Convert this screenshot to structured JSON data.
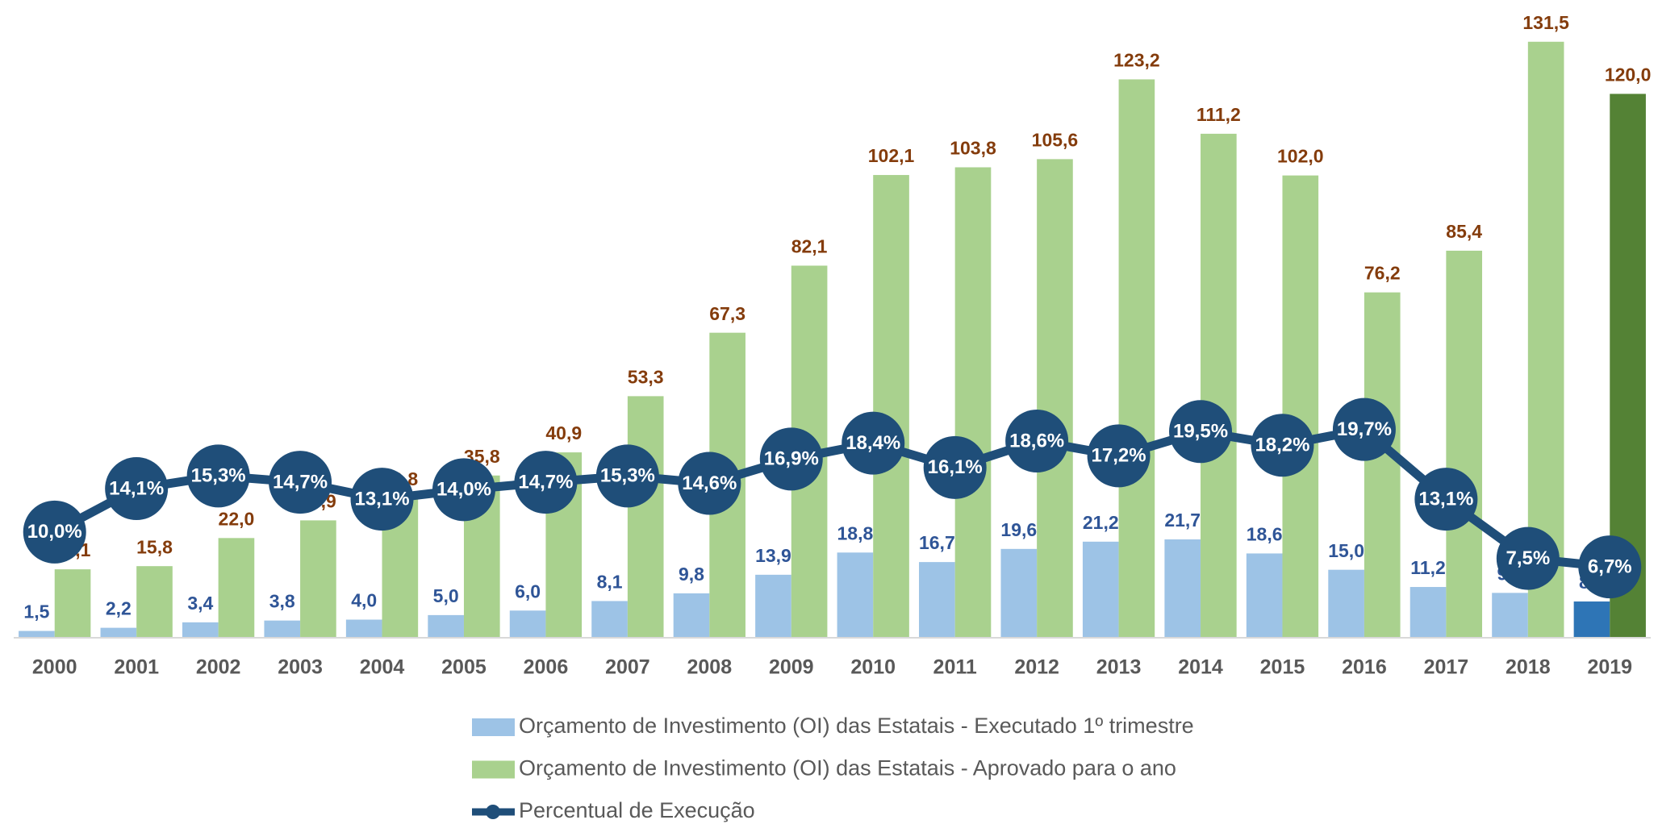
{
  "chart_data": {
    "type": "bar_line",
    "categories": [
      "2000",
      "2001",
      "2002",
      "2003",
      "2004",
      "2005",
      "2006",
      "2007",
      "2008",
      "2009",
      "2010",
      "2011",
      "2012",
      "2013",
      "2014",
      "2015",
      "2016",
      "2017",
      "2018",
      "2019"
    ],
    "series": [
      {
        "name": "Orçamento de Investimento (OI) das Estatais - Executado 1º trimestre",
        "type": "bar",
        "color": "#9dc3e6",
        "label_color": "#2f5597",
        "colors": [
          "#9dc3e6",
          "#9dc3e6",
          "#9dc3e6",
          "#9dc3e6",
          "#9dc3e6",
          "#9dc3e6",
          "#9dc3e6",
          "#9dc3e6",
          "#9dc3e6",
          "#9dc3e6",
          "#9dc3e6",
          "#9dc3e6",
          "#9dc3e6",
          "#9dc3e6",
          "#9dc3e6",
          "#9dc3e6",
          "#9dc3e6",
          "#9dc3e6",
          "#9dc3e6",
          "#2e75b6"
        ],
        "values": [
          1.5,
          2.2,
          3.4,
          3.8,
          4.0,
          5.0,
          6.0,
          8.1,
          9.8,
          13.9,
          18.8,
          16.7,
          19.6,
          21.2,
          21.7,
          18.6,
          15.0,
          11.2,
          9.9,
          8.0
        ],
        "value_labels": [
          "1,5",
          "2,2",
          "3,4",
          "3,8",
          "4,0",
          "5,0",
          "6,0",
          "8,1",
          "9,8",
          "13,9",
          "18,8",
          "16,7",
          "19,6",
          "21,2",
          "21,7",
          "18,6",
          "15,0",
          "11,2",
          "9,9",
          "8,0"
        ]
      },
      {
        "name": "Orçamento de Investimento (OI) das Estatais - Aprovado para o ano",
        "type": "bar",
        "color": "#a9d18e",
        "label_color": "#843c0c",
        "colors": [
          "#a9d18e",
          "#a9d18e",
          "#a9d18e",
          "#a9d18e",
          "#a9d18e",
          "#a9d18e",
          "#a9d18e",
          "#a9d18e",
          "#a9d18e",
          "#a9d18e",
          "#a9d18e",
          "#a9d18e",
          "#a9d18e",
          "#a9d18e",
          "#a9d18e",
          "#a9d18e",
          "#a9d18e",
          "#a9d18e",
          "#a9d18e",
          "#548235"
        ],
        "values": [
          15.1,
          15.8,
          22.0,
          25.9,
          30.8,
          35.8,
          40.9,
          53.3,
          67.3,
          82.1,
          102.1,
          103.8,
          105.6,
          123.2,
          111.2,
          102.0,
          76.2,
          85.4,
          131.5,
          120.0
        ],
        "value_labels": [
          "15,1",
          "15,8",
          "22,0",
          "25,9",
          "30,8",
          "35,8",
          "40,9",
          "53,3",
          "67,3",
          "82,1",
          "102,1",
          "103,8",
          "105,6",
          "123,2",
          "111,2",
          "102,0",
          "76,2",
          "85,4",
          "131,5",
          "120,0"
        ]
      },
      {
        "name": "Percentual de Execução",
        "type": "line",
        "axis": "y2",
        "color": "#1f4e79",
        "label_color": "#ffffff",
        "values": [
          10.0,
          14.1,
          15.3,
          14.7,
          13.1,
          14.0,
          14.7,
          15.3,
          14.6,
          16.9,
          18.4,
          16.1,
          18.6,
          17.2,
          19.5,
          18.2,
          19.7,
          13.1,
          7.5,
          6.7
        ],
        "value_labels": [
          "10,0%",
          "14,1%",
          "15,3%",
          "14,7%",
          "13,1%",
          "14,0%",
          "14,7%",
          "15,3%",
          "14,6%",
          "16,9%",
          "18,4%",
          "16,1%",
          "18,6%",
          "17,2%",
          "19,5%",
          "18,2%",
          "19,7%",
          "13,1%",
          "7,5%",
          "6,7%"
        ]
      }
    ],
    "ylim": [
      0,
      140
    ],
    "y2lim": [
      0,
      60
    ],
    "grid": false,
    "legend": "bottom"
  }
}
